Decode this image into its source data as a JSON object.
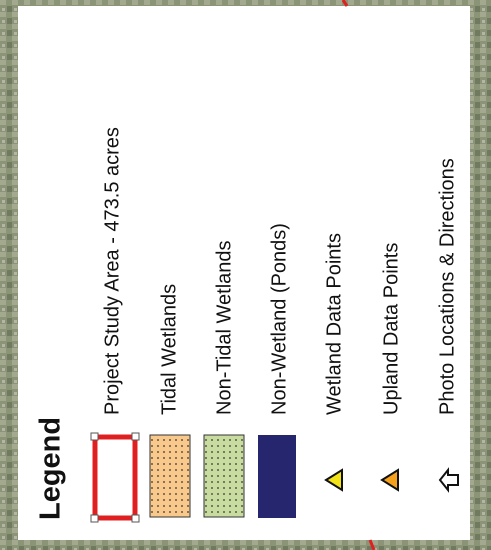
{
  "legend": {
    "title": "Legend",
    "items": [
      {
        "label": "Project Study Area - 473.5 acres"
      },
      {
        "label": "Tidal Wetlands"
      },
      {
        "label": "Non-Tidal Wetlands"
      },
      {
        "label": "Non-Wetland (Ponds)"
      },
      {
        "label": "Wetland Data Points"
      },
      {
        "label": "Upland Data Points"
      },
      {
        "label": "Photo Locations & Directions"
      }
    ]
  }
}
